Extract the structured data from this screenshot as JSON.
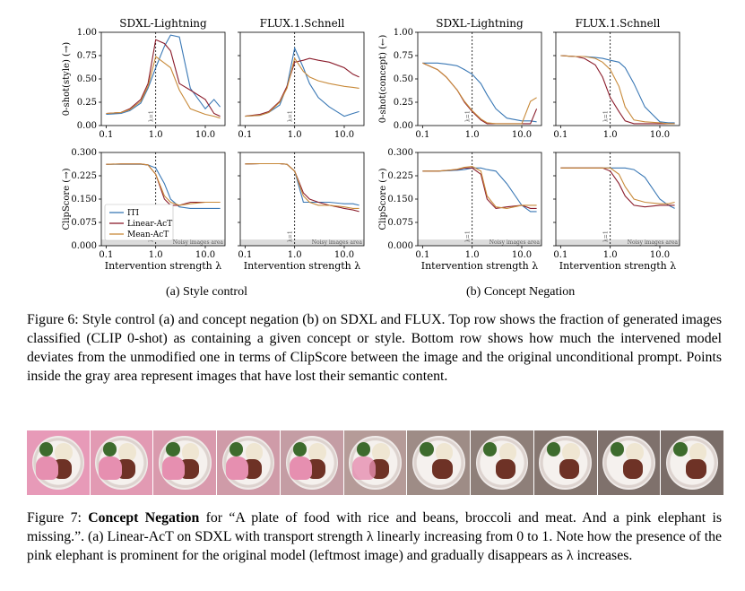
{
  "figure6": {
    "panels": [
      {
        "id": "style_top_sdxl",
        "title": "SDXL-Lightning",
        "ylabel": "0-shot(style) (→)",
        "yticks": [
          "0.00",
          "0.25",
          "0.50",
          "0.75",
          "1.00"
        ],
        "xticks": [
          "0.1",
          "1.0",
          "10.0"
        ],
        "lambda_label": "λ=1"
      },
      {
        "id": "style_top_flux",
        "title": "FLUX.1.Schnell",
        "xticks": [
          "0.1",
          "1.0",
          "10.0"
        ],
        "lambda_label": "λ=1"
      },
      {
        "id": "neg_top_sdxl",
        "title": "SDXL-Lightning",
        "ylabel": "0-shot(concept) (←)",
        "yticks": [
          "0.00",
          "0.25",
          "0.50",
          "0.75",
          "1.00"
        ],
        "xticks": [
          "0.1",
          "1.0",
          "10.0"
        ],
        "lambda_label": "λ=1"
      },
      {
        "id": "neg_top_flux",
        "title": "FLUX.1.Schnell",
        "xticks": [
          "0.1",
          "1.0",
          "10.0"
        ],
        "lambda_label": "λ=1"
      },
      {
        "id": "style_bot_sdxl",
        "ylabel": "ClipScore (→)",
        "yticks": [
          "0.000",
          "0.075",
          "0.150",
          "0.225",
          "0.300"
        ],
        "xticks": [
          "0.1",
          "1.0",
          "10.0"
        ],
        "noisy_label": "Noisy images area",
        "lambda_label": "λ=1"
      },
      {
        "id": "style_bot_flux",
        "xticks": [
          "0.1",
          "1.0",
          "10.0"
        ],
        "noisy_label": "Noisy images area",
        "lambda_label": "λ=1"
      },
      {
        "id": "neg_bot_sdxl",
        "ylabel": "ClipScore (→)",
        "yticks": [
          "0.000",
          "0.075",
          "0.150",
          "0.225",
          "0.300"
        ],
        "xticks": [
          "0.1",
          "1.0",
          "10.0"
        ],
        "noisy_label": "Noisy images area",
        "lambda_label": "λ=1"
      },
      {
        "id": "neg_bot_flux",
        "xticks": [
          "0.1",
          "1.0",
          "10.0"
        ],
        "noisy_label": "Noisy images area",
        "lambda_label": "λ=1"
      }
    ],
    "xlabel": "Intervention strength λ",
    "legend": [
      "ITI",
      "Linear-AcT",
      "Mean-AcT"
    ],
    "colors": {
      "ITI": "#3a78b5",
      "Linear-AcT": "#8b1d2c",
      "Mean-AcT": "#c88a3a"
    },
    "subcaption_a": "(a) Style control",
    "subcaption_b": "(b) Concept Negation"
  },
  "chart_data": [
    {
      "type": "line",
      "title": "SDXL-Lightning",
      "ylabel": "0-shot(style) (→)",
      "xscale": "log",
      "xlim": [
        0.08,
        25
      ],
      "ylim": [
        0,
        1
      ],
      "x": [
        0.1,
        0.2,
        0.3,
        0.5,
        0.7,
        1.0,
        1.5,
        2.0,
        3.0,
        5.0,
        10.0,
        15.0,
        20.0
      ],
      "series": [
        {
          "name": "ITI",
          "values": [
            0.12,
            0.13,
            0.16,
            0.24,
            0.4,
            0.62,
            0.85,
            0.97,
            0.95,
            0.4,
            0.18,
            0.28,
            0.2
          ]
        },
        {
          "name": "Linear-AcT",
          "values": [
            0.13,
            0.14,
            0.18,
            0.28,
            0.45,
            0.92,
            0.88,
            0.8,
            0.45,
            0.38,
            0.28,
            0.13,
            0.1
          ]
        },
        {
          "name": "Mean-AcT",
          "values": [
            0.13,
            0.14,
            0.17,
            0.26,
            0.42,
            0.74,
            0.67,
            0.62,
            0.38,
            0.18,
            0.12,
            0.1,
            0.08
          ]
        }
      ]
    },
    {
      "type": "line",
      "title": "FLUX.1.Schnell",
      "xscale": "log",
      "xlim": [
        0.08,
        25
      ],
      "ylim": [
        0,
        1
      ],
      "x": [
        0.1,
        0.2,
        0.3,
        0.5,
        0.7,
        1.0,
        1.5,
        2.0,
        3.0,
        5.0,
        10.0,
        15.0,
        20.0
      ],
      "series": [
        {
          "name": "ITI",
          "values": [
            0.1,
            0.11,
            0.14,
            0.22,
            0.42,
            0.83,
            0.62,
            0.45,
            0.3,
            0.2,
            0.1,
            0.13,
            0.15
          ]
        },
        {
          "name": "Linear-AcT",
          "values": [
            0.1,
            0.12,
            0.15,
            0.26,
            0.42,
            0.68,
            0.7,
            0.72,
            0.7,
            0.68,
            0.62,
            0.55,
            0.52
          ]
        },
        {
          "name": "Mean-AcT",
          "values": [
            0.1,
            0.11,
            0.14,
            0.25,
            0.4,
            0.72,
            0.58,
            0.52,
            0.48,
            0.45,
            0.42,
            0.41,
            0.4
          ]
        }
      ]
    },
    {
      "type": "line",
      "title": "SDXL-Lightning",
      "ylabel": "0-shot(concept) (←)",
      "xscale": "log",
      "xlim": [
        0.08,
        25
      ],
      "ylim": [
        0,
        1
      ],
      "x": [
        0.1,
        0.2,
        0.3,
        0.5,
        0.7,
        1.0,
        1.5,
        2.0,
        3.0,
        5.0,
        10.0,
        15.0,
        20.0
      ],
      "series": [
        {
          "name": "ITI",
          "values": [
            0.67,
            0.67,
            0.66,
            0.64,
            0.6,
            0.55,
            0.45,
            0.33,
            0.18,
            0.08,
            0.05,
            0.05,
            0.04
          ]
        },
        {
          "name": "Linear-AcT",
          "values": [
            0.67,
            0.6,
            0.52,
            0.38,
            0.25,
            0.15,
            0.06,
            0.02,
            0.02,
            0.02,
            0.02,
            0.02,
            0.18
          ]
        },
        {
          "name": "Mean-AcT",
          "values": [
            0.67,
            0.6,
            0.52,
            0.38,
            0.26,
            0.16,
            0.07,
            0.03,
            0.02,
            0.02,
            0.02,
            0.26,
            0.3
          ]
        }
      ]
    },
    {
      "type": "line",
      "title": "FLUX.1.Schnell",
      "xscale": "log",
      "xlim": [
        0.08,
        25
      ],
      "ylim": [
        0,
        1
      ],
      "x": [
        0.1,
        0.2,
        0.3,
        0.5,
        0.7,
        1.0,
        1.5,
        2.0,
        3.0,
        5.0,
        10.0,
        15.0,
        20.0
      ],
      "series": [
        {
          "name": "ITI",
          "values": [
            0.75,
            0.74,
            0.74,
            0.73,
            0.72,
            0.7,
            0.68,
            0.62,
            0.45,
            0.2,
            0.04,
            0.03,
            0.03
          ]
        },
        {
          "name": "Linear-AcT",
          "values": [
            0.75,
            0.74,
            0.72,
            0.65,
            0.52,
            0.3,
            0.15,
            0.05,
            0.02,
            0.02,
            0.02,
            0.02,
            0.02
          ]
        },
        {
          "name": "Mean-AcT",
          "values": [
            0.75,
            0.74,
            0.74,
            0.72,
            0.68,
            0.6,
            0.42,
            0.2,
            0.06,
            0.04,
            0.03,
            0.02,
            0.02
          ]
        }
      ]
    },
    {
      "type": "line",
      "ylabel": "ClipScore (→)",
      "xscale": "log",
      "xlim": [
        0.08,
        25
      ],
      "ylim": [
        0,
        0.3
      ],
      "x": [
        0.1,
        0.2,
        0.3,
        0.5,
        0.7,
        1.0,
        1.5,
        2.0,
        3.0,
        5.0,
        10.0,
        15.0,
        20.0
      ],
      "series": [
        {
          "name": "ITI",
          "values": [
            0.262,
            0.262,
            0.262,
            0.262,
            0.26,
            0.25,
            0.2,
            0.15,
            0.125,
            0.12,
            0.12,
            0.12,
            0.12
          ]
        },
        {
          "name": "Linear-AcT",
          "values": [
            0.262,
            0.263,
            0.263,
            0.263,
            0.26,
            0.23,
            0.15,
            0.13,
            0.13,
            0.14,
            0.14,
            0.14,
            0.14
          ]
        },
        {
          "name": "Mean-AcT",
          "values": [
            0.262,
            0.263,
            0.263,
            0.263,
            0.26,
            0.23,
            0.16,
            0.14,
            0.13,
            0.135,
            0.14,
            0.14,
            0.14
          ]
        }
      ]
    },
    {
      "type": "line",
      "xscale": "log",
      "xlim": [
        0.08,
        25
      ],
      "ylim": [
        0,
        0.3
      ],
      "x": [
        0.1,
        0.2,
        0.3,
        0.5,
        0.7,
        1.0,
        1.5,
        2.0,
        3.0,
        5.0,
        10.0,
        15.0,
        20.0
      ],
      "series": [
        {
          "name": "ITI",
          "values": [
            0.263,
            0.264,
            0.264,
            0.264,
            0.262,
            0.24,
            0.14,
            0.14,
            0.14,
            0.14,
            0.135,
            0.135,
            0.13
          ]
        },
        {
          "name": "Linear-AcT",
          "values": [
            0.263,
            0.264,
            0.264,
            0.264,
            0.262,
            0.24,
            0.17,
            0.15,
            0.14,
            0.13,
            0.12,
            0.115,
            0.11
          ]
        },
        {
          "name": "Mean-AcT",
          "values": [
            0.263,
            0.264,
            0.264,
            0.264,
            0.262,
            0.24,
            0.16,
            0.14,
            0.13,
            0.13,
            0.125,
            0.12,
            0.12
          ]
        }
      ]
    },
    {
      "type": "line",
      "ylabel": "ClipScore (→)",
      "xscale": "log",
      "xlim": [
        0.08,
        25
      ],
      "ylim": [
        0,
        0.3
      ],
      "x": [
        0.1,
        0.2,
        0.3,
        0.5,
        0.7,
        1.0,
        1.5,
        2.0,
        3.0,
        5.0,
        10.0,
        15.0,
        20.0
      ],
      "series": [
        {
          "name": "ITI",
          "values": [
            0.24,
            0.24,
            0.241,
            0.243,
            0.245,
            0.25,
            0.25,
            0.245,
            0.24,
            0.2,
            0.13,
            0.11,
            0.11
          ]
        },
        {
          "name": "Linear-AcT",
          "values": [
            0.24,
            0.24,
            0.242,
            0.245,
            0.25,
            0.25,
            0.23,
            0.15,
            0.12,
            0.125,
            0.13,
            0.12,
            0.12
          ]
        },
        {
          "name": "Mean-AcT",
          "values": [
            0.24,
            0.24,
            0.242,
            0.246,
            0.252,
            0.255,
            0.24,
            0.16,
            0.125,
            0.12,
            0.13,
            0.13,
            0.13
          ]
        }
      ]
    },
    {
      "type": "line",
      "xscale": "log",
      "xlim": [
        0.08,
        25
      ],
      "ylim": [
        0,
        0.3
      ],
      "x": [
        0.1,
        0.2,
        0.3,
        0.5,
        0.7,
        1.0,
        1.5,
        2.0,
        3.0,
        5.0,
        10.0,
        15.0,
        20.0
      ],
      "series": [
        {
          "name": "ITI",
          "values": [
            0.25,
            0.25,
            0.25,
            0.25,
            0.25,
            0.25,
            0.25,
            0.25,
            0.245,
            0.22,
            0.15,
            0.13,
            0.12
          ]
        },
        {
          "name": "Linear-AcT",
          "values": [
            0.25,
            0.25,
            0.25,
            0.25,
            0.25,
            0.24,
            0.2,
            0.16,
            0.13,
            0.125,
            0.13,
            0.13,
            0.13
          ]
        },
        {
          "name": "Mean-AcT",
          "values": [
            0.25,
            0.25,
            0.25,
            0.25,
            0.25,
            0.25,
            0.23,
            0.19,
            0.15,
            0.14,
            0.135,
            0.135,
            0.14
          ]
        }
      ]
    }
  ],
  "caption6": "Figure 6: Style control (a) and concept negation (b) on SDXL and FLUX. Top row shows the fraction of generated images classified (CLIP 0-shot) as containing a given concept or style. Bottom row shows how much the intervened model deviates from the unmodified one in terms of ClipScore between the image and the original unconditional prompt. Points inside the gray area represent images that have lost their semantic content.",
  "strip": {
    "count": 11,
    "elephant": [
      1,
      1,
      1,
      1,
      1,
      0.8,
      0,
      0,
      0,
      0,
      0
    ],
    "bg_colors": [
      "#e79ab8",
      "#e29ab3",
      "#d99aad",
      "#cf9ba8",
      "#c49da4",
      "#b59b98",
      "#9e8c86",
      "#8e7f79",
      "#857670",
      "#7f716c",
      "#7a6d68"
    ]
  },
  "caption7_label": "Figure 7:",
  "caption7_bold": "Concept Negation",
  "caption7_rest": "for “A plate of food with rice and beans, broccoli and meat. And a pink elephant is missing.”. (a) Linear-AcT on SDXL with transport strength λ linearly increasing from 0 to 1. Note how the presence of the pink elephant is prominent for the original model (leftmost image) and gradually disappears as λ increases."
}
